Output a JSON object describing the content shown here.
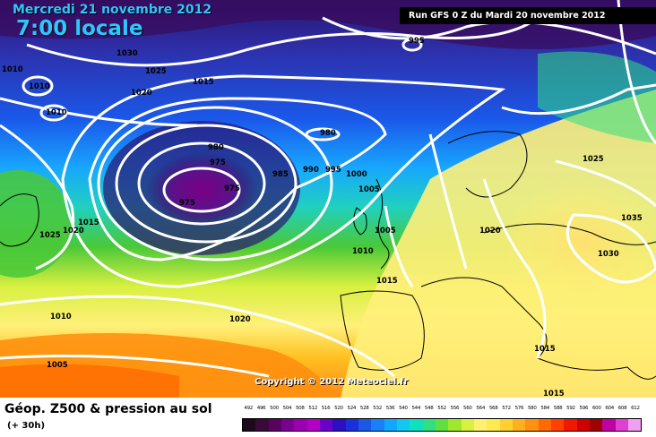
{
  "header": {
    "date": "Mercredi 21 novembre 2012",
    "time": "7:00 locale",
    "run": "Run GFS 0 Z du Mardi 20 novembre 2012"
  },
  "copyright": "Copyright © 2012 Meteociel.fr",
  "footer": {
    "title": "Géop. Z500 & pression au sol",
    "subtitle": "(+ 30h)"
  },
  "colors": {
    "low_center": "#7a0088",
    "deep_low": "#2a1470",
    "blue": "#2e2ea8",
    "light_blue": "#18a6ff",
    "green": "#4ac838",
    "yellow": "#fff07a",
    "orange": "#ff8a18",
    "isobar": "#ffffff"
  },
  "isobars": [
    {
      "label": "1030"
    },
    {
      "label": "1025"
    },
    {
      "label": "1020"
    },
    {
      "label": "1015"
    },
    {
      "label": "1010"
    },
    {
      "label": "1010"
    },
    {
      "label": "1010"
    },
    {
      "label": "995"
    },
    {
      "label": "980"
    },
    {
      "label": "980"
    },
    {
      "label": "975"
    },
    {
      "label": "975"
    },
    {
      "label": "975"
    },
    {
      "label": "985"
    },
    {
      "label": "990"
    },
    {
      "label": "995"
    },
    {
      "label": "1000"
    },
    {
      "label": "1005"
    },
    {
      "label": "1005"
    },
    {
      "label": "1010"
    },
    {
      "label": "1015"
    },
    {
      "label": "1015"
    },
    {
      "label": "1025"
    },
    {
      "label": "1020"
    },
    {
      "label": "1010"
    },
    {
      "label": "1020"
    },
    {
      "label": "1005"
    },
    {
      "label": "1020"
    },
    {
      "label": "1025"
    },
    {
      "label": "1035"
    },
    {
      "label": "1030"
    },
    {
      "label": "1015"
    },
    {
      "label": "1015"
    }
  ],
  "scale": {
    "values": [
      "492",
      "496",
      "500",
      "504",
      "508",
      "512",
      "516",
      "520",
      "524",
      "528",
      "532",
      "536",
      "540",
      "544",
      "548",
      "552",
      "556",
      "560",
      "564",
      "568",
      "572",
      "576",
      "580",
      "584",
      "588",
      "592",
      "596",
      "600",
      "604",
      "608",
      "612"
    ],
    "colors": [
      "#1a0a1a",
      "#3a0a3a",
      "#5a0060",
      "#7a0090",
      "#9a00b0",
      "#b400c4",
      "#6b00c8",
      "#2a10c0",
      "#1a30d8",
      "#1a58ea",
      "#1a80f8",
      "#10a8ff",
      "#10c8f0",
      "#10e0c0",
      "#30e080",
      "#60e040",
      "#a0e830",
      "#d8f040",
      "#fff070",
      "#ffea50",
      "#ffd030",
      "#ffb020",
      "#ff9010",
      "#ff6a00",
      "#ff4000",
      "#f01800",
      "#d00000",
      "#a00000",
      "#c000a0",
      "#e040d0",
      "#f0a0f0"
    ]
  }
}
